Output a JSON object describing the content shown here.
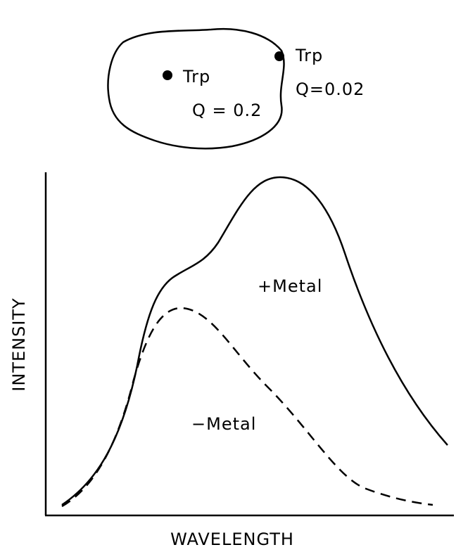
{
  "protein": {
    "inner_label": "Trp",
    "inner_q": "Q = 0.2",
    "surface_label": "Trp",
    "surface_q": "Q=0.02"
  },
  "plot": {
    "x_label": "WAVELENGTH",
    "y_label": "INTENSITY",
    "curve_with_metal": "+Metal",
    "curve_without_metal": "−Metal"
  }
}
